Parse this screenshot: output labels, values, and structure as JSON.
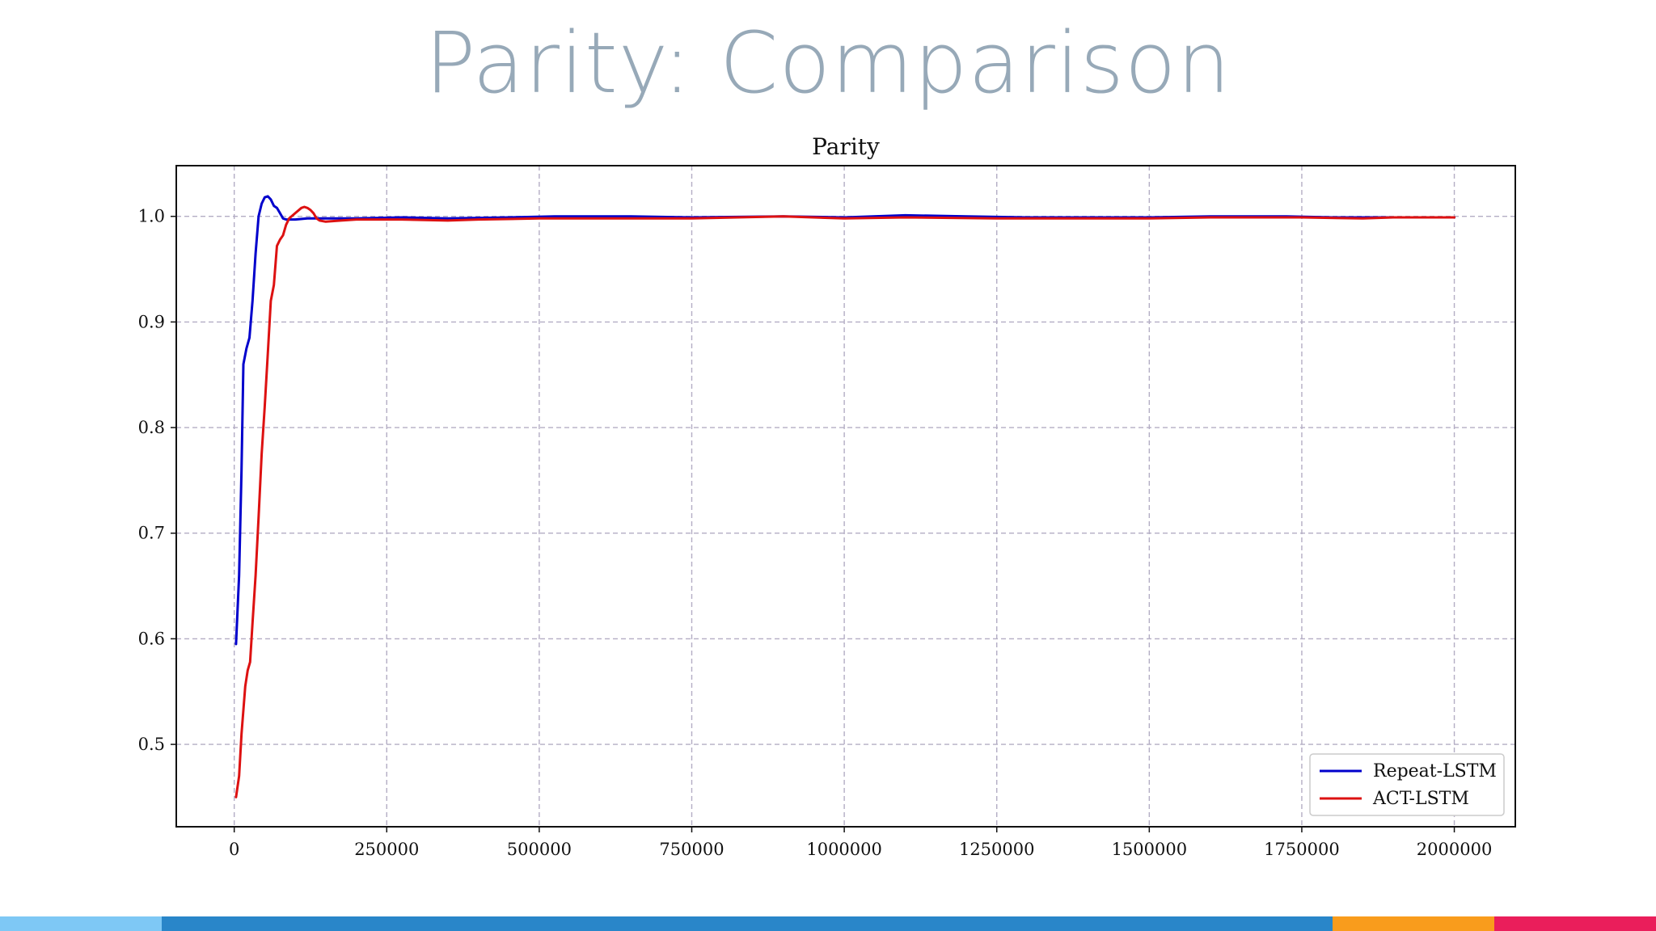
{
  "slide": {
    "title": "Parity: Comparison"
  },
  "footer": {
    "segments": [
      {
        "color": "#7ec8f5",
        "fraction": 0.0977
      },
      {
        "color": "#2986c9",
        "fraction": 0.707
      },
      {
        "color": "#f99c1c",
        "fraction": 0.0977
      },
      {
        "color": "#ea1e5b",
        "fraction": 0.0976
      }
    ]
  },
  "chart_data": {
    "type": "line",
    "title": "Parity",
    "xlabel": "",
    "ylabel": "",
    "xlim": [
      -95000,
      2100000
    ],
    "ylim": [
      0.422,
      1.048
    ],
    "xticks": [
      0,
      250000,
      500000,
      750000,
      1000000,
      1250000,
      1500000,
      1750000,
      2000000
    ],
    "xtick_labels": [
      "0",
      "250000",
      "500000",
      "750000",
      "1000000",
      "1250000",
      "1500000",
      "1750000",
      "2000000"
    ],
    "yticks": [
      0.5,
      0.6,
      0.7,
      0.8,
      0.9,
      1.0
    ],
    "ytick_labels": [
      "0.5",
      "0.6",
      "0.7",
      "0.8",
      "0.9",
      "1.0"
    ],
    "grid": true,
    "legend_position": "lower-right",
    "series": [
      {
        "name": "Repeat-LSTM",
        "color": "#0000cc",
        "x": [
          3000,
          8000,
          12000,
          15000,
          20000,
          25000,
          30000,
          35000,
          40000,
          45000,
          50000,
          55000,
          60000,
          65000,
          70000,
          75000,
          80000,
          85000,
          90000,
          100000,
          120000,
          150000,
          200000,
          275000,
          350000,
          450000,
          525000,
          650000,
          750000,
          900000,
          1000000,
          1100000,
          1200000,
          1300000,
          1400000,
          1500000,
          1600000,
          1725000,
          1800000,
          1900000,
          2000000
        ],
        "y": [
          0.595,
          0.66,
          0.76,
          0.86,
          0.875,
          0.885,
          0.92,
          0.965,
          1.0,
          1.012,
          1.018,
          1.019,
          1.016,
          1.01,
          1.008,
          1.003,
          0.998,
          0.997,
          0.997,
          0.997,
          0.998,
          0.998,
          0.998,
          0.999,
          0.998,
          0.999,
          1.0,
          1.0,
          0.999,
          1.0,
          0.999,
          1.001,
          1.0,
          0.999,
          0.999,
          0.999,
          1.0,
          1.0,
          0.999,
          0.999,
          0.999
        ]
      },
      {
        "name": "ACT-LSTM",
        "color": "#dd1111",
        "x": [
          3000,
          8000,
          12000,
          18000,
          22000,
          26000,
          30000,
          35000,
          40000,
          45000,
          50000,
          55000,
          60000,
          65000,
          70000,
          75000,
          80000,
          85000,
          90000,
          100000,
          110000,
          115000,
          120000,
          125000,
          130000,
          135000,
          140000,
          150000,
          175000,
          200000,
          275000,
          350000,
          400000,
          500000,
          600000,
          750000,
          900000,
          1000000,
          1100000,
          1250000,
          1400000,
          1500000,
          1600000,
          1750000,
          1850000,
          1900000,
          2000000
        ],
        "y": [
          0.45,
          0.47,
          0.51,
          0.555,
          0.57,
          0.578,
          0.615,
          0.66,
          0.715,
          0.775,
          0.82,
          0.87,
          0.92,
          0.935,
          0.972,
          0.978,
          0.982,
          0.992,
          0.998,
          1.003,
          1.008,
          1.009,
          1.008,
          1.006,
          1.003,
          0.998,
          0.996,
          0.995,
          0.996,
          0.997,
          0.997,
          0.996,
          0.997,
          0.998,
          0.998,
          0.998,
          1.0,
          0.998,
          0.999,
          0.998,
          0.998,
          0.998,
          0.999,
          0.999,
          0.998,
          0.999,
          0.999
        ]
      }
    ]
  }
}
